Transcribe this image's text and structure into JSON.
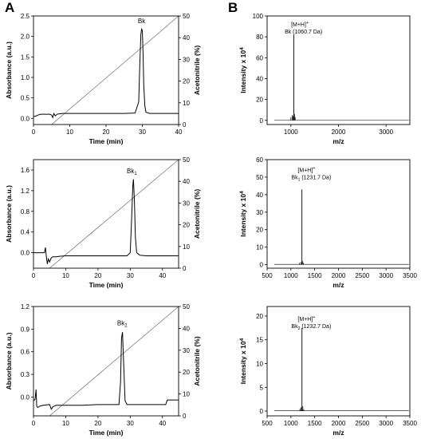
{
  "panels": [
    {
      "label": "A"
    },
    {
      "label": "B"
    }
  ],
  "chart_data": [
    {
      "id": "hplc-bk",
      "type": "line",
      "xlabel": "Time (min)",
      "ylabel": "Absorbance (a.u.)",
      "y2label": "Acetonitrile (%)",
      "xlim": [
        0,
        40
      ],
      "ylim": [
        -0.15,
        2.5
      ],
      "y2lim": [
        0,
        50
      ],
      "xticks": [
        0,
        10,
        20,
        30,
        40
      ],
      "yticks": [
        0.0,
        0.5,
        1.0,
        1.5,
        2.0,
        2.5
      ],
      "ytick_labels": [
        "0.0",
        "0.5",
        "1.0",
        "1.5",
        "2.0",
        "2.5"
      ],
      "y2ticks": [
        0,
        10,
        20,
        30,
        40,
        50
      ],
      "annotation": {
        "text": "Bk",
        "sub": "",
        "x": 29.8,
        "y": 2.32
      },
      "gradient": {
        "x": [
          5,
          40
        ],
        "y2": [
          0,
          50
        ]
      },
      "trace": {
        "x": [
          0,
          0.5,
          1,
          1.5,
          2,
          3,
          4,
          4.5,
          5,
          5.3,
          5.6,
          6,
          6.5,
          7,
          8,
          10,
          15,
          20,
          25,
          28,
          29,
          29.3,
          29.6,
          29.8,
          30.0,
          30.2,
          30.4,
          30.7,
          31,
          32,
          35,
          38,
          40
        ],
        "y": [
          0.05,
          0.05,
          0.07,
          0.09,
          0.1,
          0.1,
          0.1,
          0.1,
          0.08,
          0.02,
          0.12,
          0.06,
          0.1,
          0.11,
          0.12,
          0.12,
          0.12,
          0.12,
          0.12,
          0.13,
          0.4,
          1.3,
          2.05,
          2.18,
          2.15,
          1.6,
          0.8,
          0.3,
          0.15,
          0.12,
          0.12,
          0.12,
          0.12
        ]
      }
    },
    {
      "id": "hplc-bk1",
      "type": "line",
      "xlabel": "Time (min)",
      "ylabel": "Absorbance (a.u.)",
      "y2label": "Acetonitrile (%)",
      "xlim": [
        0,
        45
      ],
      "ylim": [
        -0.3,
        1.8
      ],
      "y2lim": [
        0,
        50
      ],
      "xticks": [
        0,
        10,
        20,
        30,
        40
      ],
      "yticks": [
        0.0,
        0.4,
        0.8,
        1.2,
        1.6
      ],
      "ytick_labels": [
        "0.0",
        "0.4",
        "0.8",
        "1.2",
        "1.6"
      ],
      "y2ticks": [
        0,
        10,
        20,
        30,
        40,
        50
      ],
      "annotation": {
        "text": "Bk",
        "sub": "1",
        "x": 30.5,
        "y": 1.54
      },
      "gradient": {
        "x": [
          5,
          45
        ],
        "y2": [
          0,
          50
        ]
      },
      "trace": {
        "x": [
          0,
          1,
          2,
          3,
          3.4,
          3.7,
          4,
          4.3,
          4.6,
          5,
          5.5,
          6,
          7,
          8,
          10,
          15,
          20,
          25,
          29,
          30,
          30.4,
          30.8,
          31.0,
          31.3,
          31.6,
          32,
          33,
          35,
          40,
          45
        ],
        "y": [
          0.0,
          0.0,
          0.0,
          0.0,
          0.0,
          0.1,
          -0.08,
          -0.22,
          -0.12,
          -0.18,
          -0.1,
          -0.08,
          -0.08,
          -0.07,
          -0.06,
          -0.06,
          -0.06,
          -0.06,
          -0.06,
          0.0,
          0.6,
          1.3,
          1.42,
          1.0,
          0.3,
          0.0,
          -0.05,
          -0.06,
          -0.06,
          -0.06
        ]
      }
    },
    {
      "id": "hplc-bk2",
      "type": "line",
      "xlabel": "Time (min)",
      "ylabel": "Absorbance (a.u.)",
      "y2label": "Acetonitrile (%)",
      "xlim": [
        0,
        45
      ],
      "ylim": [
        -0.25,
        1.2
      ],
      "y2lim": [
        0,
        50
      ],
      "xticks": [
        0,
        10,
        20,
        30,
        40
      ],
      "yticks": [
        0.0,
        0.3,
        0.6,
        0.9,
        1.2
      ],
      "ytick_labels": [
        "0.0",
        "0.3",
        "0.6",
        "0.9",
        "1.2"
      ],
      "y2ticks": [
        0,
        10,
        20,
        30,
        40,
        50
      ],
      "annotation": {
        "text": "Bk",
        "sub": "2",
        "x": 27.5,
        "y": 0.95
      },
      "gradient": {
        "x": [
          5,
          45
        ],
        "y2": [
          0,
          50
        ]
      },
      "trace": {
        "x": [
          0,
          0.5,
          0.8,
          1.0,
          1.3,
          2,
          3,
          5,
          5.5,
          6,
          6.5,
          7,
          10,
          15,
          20,
          25,
          26.5,
          27.0,
          27.3,
          27.6,
          28.0,
          28.4,
          29,
          30,
          35,
          40,
          41,
          41.5,
          42,
          45
        ],
        "y": [
          -0.05,
          -0.03,
          0.1,
          -0.12,
          -0.14,
          -0.12,
          -0.11,
          -0.1,
          -0.16,
          -0.13,
          -0.12,
          -0.11,
          -0.11,
          -0.11,
          -0.1,
          -0.1,
          -0.1,
          0.2,
          0.78,
          0.86,
          0.4,
          -0.05,
          -0.1,
          -0.1,
          -0.1,
          -0.1,
          -0.1,
          -0.04,
          -0.04,
          -0.04
        ]
      }
    },
    {
      "id": "ms-bk",
      "type": "line",
      "xlabel": "m/z",
      "ylabel": "Intensity x 10",
      "ylabel_sup": "4",
      "xlim": [
        500,
        3500
      ],
      "ylim": [
        -4,
        100
      ],
      "xticks": [
        1000,
        2000,
        3000
      ],
      "yticks": [
        0,
        20,
        40,
        60,
        80,
        100
      ],
      "ytick_labels": [
        "0",
        "20",
        "40",
        "60",
        "80",
        "100"
      ],
      "annotation": {
        "line1": "[M+H]",
        "line1_sup": "+",
        "line2_base": "Bk",
        "line2_sub": "",
        "line2_rest": " (1060.7 Da)",
        "x": 870,
        "y": 90
      },
      "spectrum": {
        "peaks": [
          {
            "mz": 1060.7,
            "intensity": 82
          },
          {
            "mz": 1000,
            "intensity": 3
          },
          {
            "mz": 1030,
            "intensity": 5
          },
          {
            "mz": 1045,
            "intensity": 4
          },
          {
            "mz": 1075,
            "intensity": 6
          },
          {
            "mz": 1090,
            "intensity": 3
          }
        ],
        "baseline": 0.3
      }
    },
    {
      "id": "ms-bk1",
      "type": "line",
      "xlabel": "m/z",
      "ylabel": "Intensity x 10",
      "ylabel_sup": "4",
      "xlim": [
        500,
        3500
      ],
      "ylim": [
        -2,
        60
      ],
      "xticks": [
        500,
        1000,
        1500,
        2000,
        2500,
        3000,
        3500
      ],
      "yticks": [
        0,
        10,
        20,
        30,
        40,
        50,
        60
      ],
      "ytick_labels": [
        "0",
        "10",
        "20",
        "30",
        "40",
        "50",
        "60"
      ],
      "annotation": {
        "line1": "[M+H]",
        "line1_sup": "+",
        "line2_base": "Bk",
        "line2_sub": "1",
        "line2_rest": " (1231.7 Da)",
        "x": 1010,
        "y": 53
      },
      "spectrum": {
        "peaks": [
          {
            "mz": 1231.7,
            "intensity": 43
          },
          {
            "mz": 1180,
            "intensity": 1
          },
          {
            "mz": 1210,
            "intensity": 1.5
          },
          {
            "mz": 1250,
            "intensity": 2
          },
          {
            "mz": 1265,
            "intensity": 1
          }
        ],
        "baseline": 0.2
      }
    },
    {
      "id": "ms-bk2",
      "type": "line",
      "xlabel": "m/z",
      "ylabel": "Intensity x 10",
      "ylabel_sup": "4",
      "xlim": [
        500,
        3500
      ],
      "ylim": [
        -1,
        22
      ],
      "xticks": [
        500,
        1000,
        1500,
        2000,
        2500,
        3000,
        3500
      ],
      "yticks": [
        0,
        5,
        10,
        15,
        20
      ],
      "ytick_labels": [
        "0",
        "5",
        "10",
        "15",
        "20"
      ],
      "annotation": {
        "line1": "[M+H]",
        "line1_sup": "+",
        "line2_base": "Bk",
        "line2_sub": "2",
        "line2_rest": " (1232.7 Da)",
        "x": 1010,
        "y": 19
      },
      "spectrum": {
        "peaks": [
          {
            "mz": 1232.7,
            "intensity": 17.5
          },
          {
            "mz": 1190,
            "intensity": 0.5
          },
          {
            "mz": 1215,
            "intensity": 0.8
          },
          {
            "mz": 1250,
            "intensity": 1.0
          },
          {
            "mz": 1270,
            "intensity": 0.4
          }
        ],
        "baseline": 0.1
      }
    }
  ]
}
